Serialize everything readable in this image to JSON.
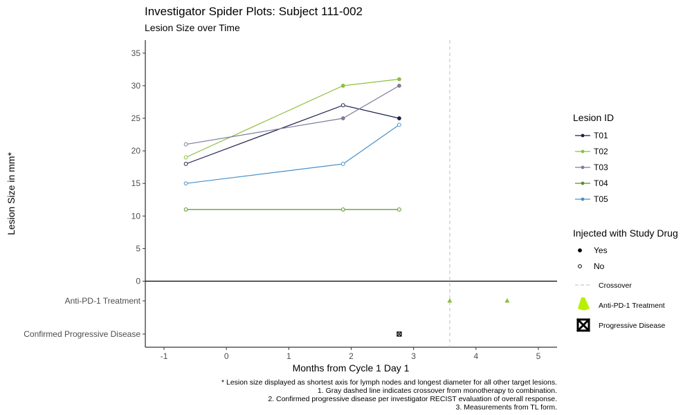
{
  "chart_data": {
    "type": "line",
    "title": "Investigator Spider Plots: Subject 111-002",
    "subtitle": "Lesion Size over Time",
    "xlabel": "Months from Cycle 1 Day 1",
    "ylabel": "Lesion Size in mm*",
    "xlim": [
      -1.3,
      5.3
    ],
    "ylim": [
      0,
      37
    ],
    "x_ticks": [
      "-1",
      "0",
      "1",
      "2",
      "3",
      "4",
      "5"
    ],
    "y_ticks": [
      "0",
      "5",
      "10",
      "15",
      "20",
      "25",
      "30",
      "35"
    ],
    "grid": false,
    "legend_position": "right",
    "series": [
      {
        "name": "T01",
        "color": "#1b1f4a",
        "points": [
          {
            "x": -0.65,
            "y": 18,
            "injected": false
          },
          {
            "x": 1.87,
            "y": 27,
            "injected": false
          },
          {
            "x": 2.77,
            "y": 25,
            "injected": true
          }
        ]
      },
      {
        "name": "T02",
        "color": "#8cbf3f",
        "points": [
          {
            "x": -0.65,
            "y": 19,
            "injected": false
          },
          {
            "x": 1.87,
            "y": 30,
            "injected": true
          },
          {
            "x": 2.77,
            "y": 31,
            "injected": true
          }
        ]
      },
      {
        "name": "T03",
        "color": "#7d7a9c",
        "points": [
          {
            "x": -0.65,
            "y": 21,
            "injected": false
          },
          {
            "x": 1.87,
            "y": 25,
            "injected": true
          },
          {
            "x": 2.77,
            "y": 30,
            "injected": true
          }
        ]
      },
      {
        "name": "T04",
        "color": "#5a8f2a",
        "points": [
          {
            "x": -0.65,
            "y": 11,
            "injected": false
          },
          {
            "x": 1.87,
            "y": 11,
            "injected": false
          },
          {
            "x": 2.77,
            "y": 11,
            "injected": false
          }
        ]
      },
      {
        "name": "T05",
        "color": "#4a90c8",
        "points": [
          {
            "x": -0.65,
            "y": 15,
            "injected": false
          },
          {
            "x": 1.87,
            "y": 18,
            "injected": false
          },
          {
            "x": 2.77,
            "y": 24,
            "injected": false
          }
        ]
      }
    ],
    "crossover_x": 3.58,
    "event_rows": [
      {
        "label": "Anti-PD-1 Treatment",
        "x": [
          3.58,
          4.5
        ],
        "color": "#8cbf3f"
      },
      {
        "label": "Confirmed Progressive Disease",
        "x": [
          2.77
        ]
      }
    ],
    "legend_lesion_title": "Lesion ID",
    "legend_inject_title": "Injected with Study Drug",
    "legend_inject_items": [
      "Yes",
      "No"
    ],
    "legend_other_items": [
      "Crossover",
      "Anti-PD-1 Treatment",
      "Progressive Disease"
    ],
    "footnotes": [
      "* Lesion size displayed as shortest axis for lymph nodes and longest diameter for all other target lesions.",
      "1. Gray dashed line indicates crossover from monotherapy to combination.",
      "2. Confirmed progressive disease per investigator RECIST evaluation of overall response.",
      "3. Measurements from TL form."
    ]
  }
}
